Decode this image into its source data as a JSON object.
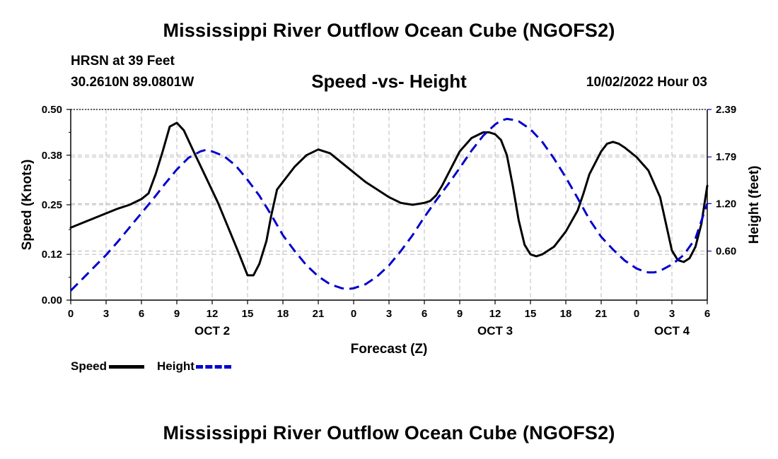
{
  "page": {
    "title_top": "Mississippi River Outflow Ocean Cube (NGOFS2)",
    "title_bottom": "Mississippi River Outflow Ocean Cube (NGOFS2)",
    "station": "HRSN at 39 Feet",
    "coordinates": "30.2610N  89.0801W",
    "subtitle": "Speed -vs- Height",
    "datetime": "10/02/2022 Hour 03"
  },
  "legend": {
    "speed_label": "Speed",
    "height_label": "Height"
  },
  "colors": {
    "speed": "#000000",
    "height": "#0000cc",
    "grid": "#bbbbbb"
  },
  "chart_data": {
    "type": "line",
    "xlabel": "Forecast (Z)",
    "ylabel_left": "Speed (Knots)",
    "ylabel_right": "Height (feet)",
    "x_range_hours": [
      0,
      54
    ],
    "x_tick_hours": [
      0,
      3,
      6,
      9,
      12,
      15,
      18,
      21,
      24,
      27,
      30,
      33,
      36,
      39,
      42,
      45,
      48,
      51,
      54
    ],
    "x_tick_labels": [
      "0",
      "3",
      "6",
      "9",
      "12",
      "15",
      "18",
      "21",
      "0",
      "3",
      "6",
      "9",
      "12",
      "15",
      "18",
      "21",
      "0",
      "3",
      "6"
    ],
    "date_labels": [
      {
        "label": "OCT 2",
        "hour": 12
      },
      {
        "label": "OCT 3",
        "hour": 36
      },
      {
        "label": "OCT 4",
        "hour": 51
      }
    ],
    "y_left": {
      "min": 0.0,
      "max": 0.5,
      "ticks": [
        0.0,
        0.12,
        0.25,
        0.38,
        0.5
      ],
      "tick_labels": [
        "0.00",
        "0.12",
        "0.25",
        "0.38",
        "0.50"
      ]
    },
    "y_right": {
      "min": -0.02,
      "max": 2.39,
      "ticks": [
        0.6,
        1.2,
        1.79,
        2.39
      ],
      "tick_labels": [
        "0.60",
        "1.20",
        "1.79",
        "2.39"
      ]
    },
    "grid": true,
    "series": [
      {
        "name": "Speed",
        "axis": "left",
        "style": "solid",
        "points": [
          [
            0,
            0.19
          ],
          [
            2,
            0.215
          ],
          [
            4,
            0.24
          ],
          [
            5,
            0.25
          ],
          [
            6,
            0.265
          ],
          [
            6.6,
            0.28
          ],
          [
            7.2,
            0.33
          ],
          [
            7.8,
            0.39
          ],
          [
            8.4,
            0.455
          ],
          [
            9,
            0.465
          ],
          [
            9.6,
            0.445
          ],
          [
            10.5,
            0.385
          ],
          [
            11.5,
            0.32
          ],
          [
            12.5,
            0.255
          ],
          [
            13.5,
            0.18
          ],
          [
            14.3,
            0.12
          ],
          [
            15,
            0.065
          ],
          [
            15.5,
            0.065
          ],
          [
            16,
            0.095
          ],
          [
            16.6,
            0.155
          ],
          [
            17,
            0.22
          ],
          [
            17.5,
            0.29
          ],
          [
            18,
            0.31
          ],
          [
            19,
            0.35
          ],
          [
            20,
            0.38
          ],
          [
            21,
            0.395
          ],
          [
            22,
            0.385
          ],
          [
            23,
            0.36
          ],
          [
            24,
            0.335
          ],
          [
            25,
            0.31
          ],
          [
            26,
            0.29
          ],
          [
            27,
            0.27
          ],
          [
            28,
            0.255
          ],
          [
            29,
            0.25
          ],
          [
            30,
            0.255
          ],
          [
            30.5,
            0.26
          ],
          [
            31,
            0.275
          ],
          [
            31.5,
            0.3
          ],
          [
            32,
            0.33
          ],
          [
            32.5,
            0.36
          ],
          [
            33,
            0.39
          ],
          [
            34,
            0.425
          ],
          [
            35,
            0.44
          ],
          [
            35.5,
            0.44
          ],
          [
            36,
            0.435
          ],
          [
            36.5,
            0.42
          ],
          [
            37,
            0.38
          ],
          [
            37.5,
            0.3
          ],
          [
            38,
            0.21
          ],
          [
            38.5,
            0.145
          ],
          [
            39,
            0.12
          ],
          [
            39.5,
            0.115
          ],
          [
            40,
            0.12
          ],
          [
            41,
            0.14
          ],
          [
            42,
            0.18
          ],
          [
            43,
            0.235
          ],
          [
            43.5,
            0.28
          ],
          [
            44,
            0.33
          ],
          [
            45,
            0.39
          ],
          [
            45.5,
            0.41
          ],
          [
            46,
            0.415
          ],
          [
            46.5,
            0.41
          ],
          [
            47,
            0.4
          ],
          [
            48,
            0.375
          ],
          [
            49,
            0.34
          ],
          [
            50,
            0.27
          ],
          [
            51,
            0.13
          ],
          [
            51.5,
            0.105
          ],
          [
            52,
            0.1
          ],
          [
            52.5,
            0.11
          ],
          [
            53,
            0.14
          ],
          [
            53.5,
            0.2
          ],
          [
            54,
            0.3
          ]
        ]
      },
      {
        "name": "Height",
        "axis": "right",
        "style": "dashed",
        "points": [
          [
            0,
            0.1
          ],
          [
            1,
            0.25
          ],
          [
            2,
            0.4
          ],
          [
            3,
            0.55
          ],
          [
            4,
            0.72
          ],
          [
            5,
            0.9
          ],
          [
            6,
            1.08
          ],
          [
            7,
            1.26
          ],
          [
            8,
            1.45
          ],
          [
            9,
            1.63
          ],
          [
            10,
            1.78
          ],
          [
            11,
            1.86
          ],
          [
            11.5,
            1.88
          ],
          [
            12,
            1.86
          ],
          [
            13,
            1.8
          ],
          [
            14,
            1.68
          ],
          [
            15,
            1.5
          ],
          [
            16,
            1.3
          ],
          [
            17,
            1.06
          ],
          [
            18,
            0.8
          ],
          [
            19,
            0.6
          ],
          [
            20,
            0.42
          ],
          [
            21,
            0.28
          ],
          [
            22,
            0.18
          ],
          [
            23,
            0.13
          ],
          [
            23.5,
            0.12
          ],
          [
            24,
            0.13
          ],
          [
            25,
            0.18
          ],
          [
            26,
            0.28
          ],
          [
            27,
            0.42
          ],
          [
            28,
            0.6
          ],
          [
            29,
            0.8
          ],
          [
            30,
            1.03
          ],
          [
            31,
            1.24
          ],
          [
            32,
            1.44
          ],
          [
            33,
            1.65
          ],
          [
            34,
            1.87
          ],
          [
            35,
            2.06
          ],
          [
            36,
            2.2
          ],
          [
            36.5,
            2.25
          ],
          [
            37,
            2.27
          ],
          [
            37.5,
            2.26
          ],
          [
            38,
            2.24
          ],
          [
            39,
            2.14
          ],
          [
            40,
            1.98
          ],
          [
            41,
            1.77
          ],
          [
            42,
            1.53
          ],
          [
            43,
            1.27
          ],
          [
            44,
            1.0
          ],
          [
            45,
            0.78
          ],
          [
            46,
            0.62
          ],
          [
            47,
            0.48
          ],
          [
            48,
            0.38
          ],
          [
            48.5,
            0.35
          ],
          [
            49,
            0.33
          ],
          [
            49.5,
            0.33
          ],
          [
            50,
            0.35
          ],
          [
            51,
            0.43
          ],
          [
            52,
            0.55
          ],
          [
            53,
            0.76
          ],
          [
            54,
            1.2
          ]
        ]
      }
    ]
  }
}
